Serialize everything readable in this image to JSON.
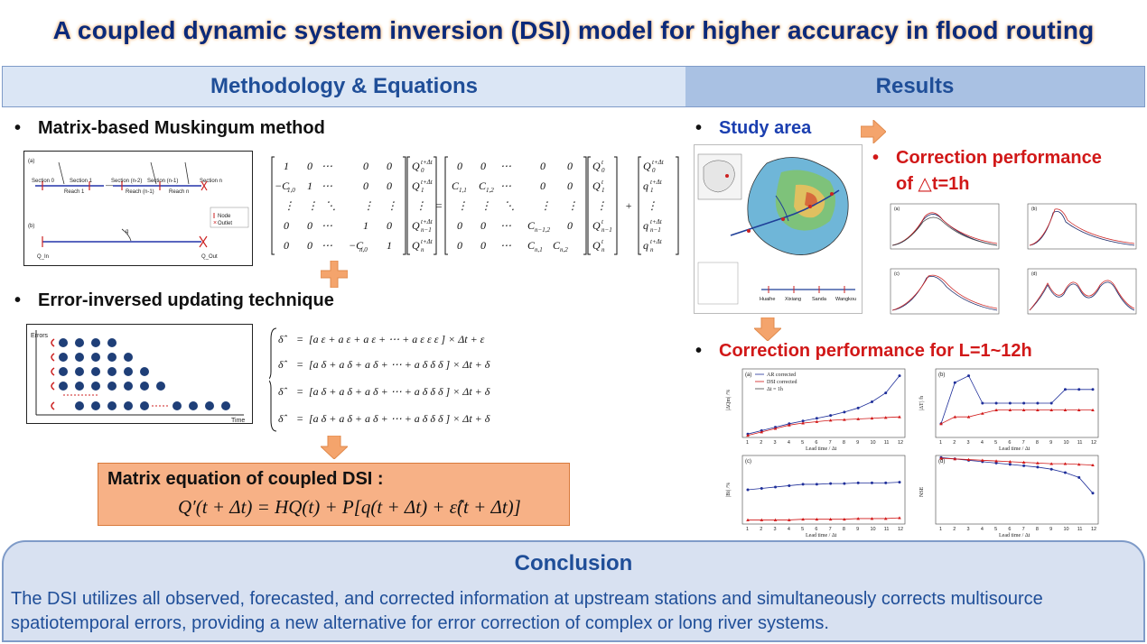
{
  "title": "A coupled dynamic system inversion (DSI) model for higher accuracy in flood routing",
  "header": {
    "left": "Methodology & Equations",
    "right": "Results"
  },
  "methodology": {
    "bullet1": "Matrix-based Muskingum method",
    "bullet2": "Error-inversed updating technique",
    "coupled_label": "Matrix equation of coupled DSI :",
    "coupled_equation": "Q′(t + Δt) = HQ(t) + P[q(t + Δt) + ε̂(t + Δt)]",
    "fig_a_labels": [
      "(a)",
      "Section 0",
      "Section 1",
      "Section (n-2)",
      "Section (n-1)",
      "Section n",
      "Reach 1",
      "Reach (n-1)",
      "Reach n",
      "Node",
      "Outlet"
    ],
    "fig_b_labels": [
      "(b)",
      "q",
      "Q_In",
      "Q_Out"
    ],
    "fig_err_labels": [
      "Errors",
      "Time"
    ]
  },
  "results": {
    "study_area": "Study area",
    "correction_1h_line1": "Correction performance",
    "correction_1h_line2": "of △t=1h",
    "correction_L": "Correction performance for L=1~12h",
    "stations": [
      "Huaihe",
      "Xixiang",
      "Sanda",
      "Wangkou"
    ],
    "panel_labels": [
      "(a)",
      "(b)",
      "(c)",
      "(d)"
    ],
    "legend": [
      "AR corrected",
      "DSI corrected",
      "Δt = 1h"
    ],
    "xlabel": "Lead time / Δt",
    "ylabels": [
      "|ΔQm| /%",
      "|ΔT| /h",
      "|Bi| /%",
      "NSE"
    ]
  },
  "conclusion": {
    "title": "Conclusion",
    "body": "The DSI utilizes all observed, forecasted, and corrected information at upstream stations and simultaneously corrects multisource spatiotemporal errors, providing a new alternative for error correction of complex or long river systems."
  },
  "chart_data": [
    {
      "type": "line",
      "panel": "(a)",
      "x": [
        1,
        2,
        3,
        4,
        5,
        6,
        7,
        8,
        9,
        10,
        11,
        12
      ],
      "xlabel": "Lead time / Δt",
      "ylabel": "|ΔQm| /%",
      "ylim": [
        0,
        10
      ],
      "series": [
        {
          "name": "AR corrected",
          "values": [
            0.5,
            1.0,
            1.5,
            2.0,
            2.4,
            2.8,
            3.2,
            3.7,
            4.3,
            5.2,
            6.5,
            9.0
          ]
        },
        {
          "name": "DSI corrected",
          "values": [
            0.3,
            0.8,
            1.3,
            1.8,
            2.1,
            2.3,
            2.5,
            2.6,
            2.7,
            2.8,
            2.9,
            3.0
          ]
        }
      ]
    },
    {
      "type": "line",
      "panel": "(b)",
      "x": [
        1,
        2,
        3,
        4,
        5,
        6,
        7,
        8,
        9,
        10,
        11,
        12
      ],
      "xlabel": "Lead time / Δt",
      "ylabel": "|ΔT| /h",
      "ylim": [
        0,
        10
      ],
      "series": [
        {
          "name": "AR corrected",
          "values": [
            2,
            8,
            9,
            5,
            5,
            5,
            5,
            5,
            5,
            7,
            7,
            7
          ]
        },
        {
          "name": "DSI corrected",
          "values": [
            2,
            3,
            3,
            3.5,
            4,
            4,
            4,
            4,
            4,
            4,
            4,
            4
          ]
        }
      ]
    },
    {
      "type": "line",
      "panel": "(c)",
      "x": [
        1,
        2,
        3,
        4,
        5,
        6,
        7,
        8,
        9,
        10,
        11,
        12
      ],
      "xlabel": "Lead time / Δt",
      "ylabel": "|Bi| /%",
      "ylim": [
        0,
        10
      ],
      "series": [
        {
          "name": "AR corrected",
          "values": [
            5.0,
            5.2,
            5.4,
            5.6,
            5.8,
            5.8,
            5.9,
            5.9,
            6.0,
            6.0,
            6.0,
            6.1
          ]
        },
        {
          "name": "DSI corrected",
          "values": [
            0.6,
            0.6,
            0.6,
            0.6,
            0.7,
            0.7,
            0.7,
            0.7,
            0.8,
            0.8,
            0.8,
            0.9
          ]
        }
      ]
    },
    {
      "type": "line",
      "panel": "(d)",
      "x": [
        1,
        2,
        3,
        4,
        5,
        6,
        7,
        8,
        9,
        10,
        11,
        12
      ],
      "xlabel": "Lead time / Δt",
      "ylabel": "NSE",
      "ylim": [
        0,
        1
      ],
      "series": [
        {
          "name": "AR corrected",
          "values": [
            0.97,
            0.95,
            0.93,
            0.91,
            0.89,
            0.87,
            0.85,
            0.83,
            0.8,
            0.75,
            0.68,
            0.45
          ]
        },
        {
          "name": "DSI corrected",
          "values": [
            0.96,
            0.95,
            0.94,
            0.93,
            0.92,
            0.91,
            0.9,
            0.89,
            0.88,
            0.88,
            0.87,
            0.86
          ]
        }
      ]
    }
  ]
}
